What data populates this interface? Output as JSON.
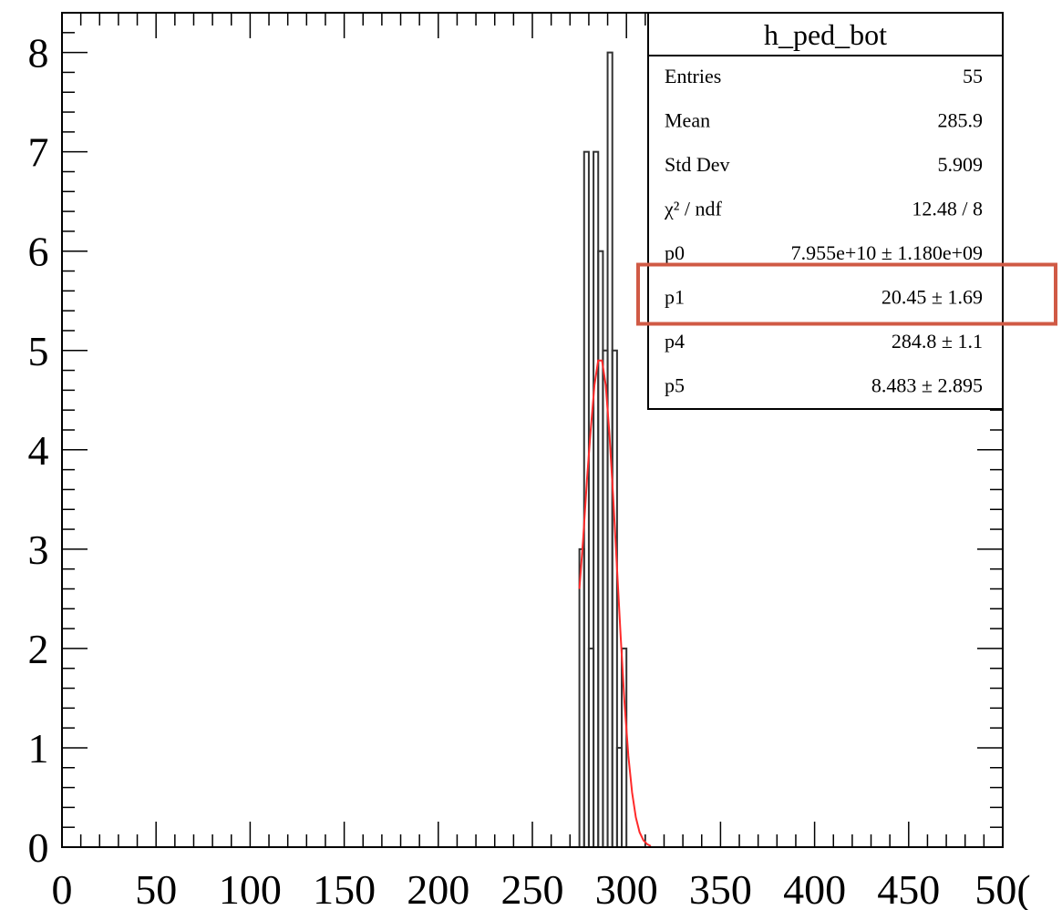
{
  "chart_data": {
    "type": "bar",
    "title": "",
    "xlabel": "",
    "ylabel": "",
    "xlim": [
      0,
      500
    ],
    "ylim": [
      0,
      8.4
    ],
    "x_ticks": [
      "0",
      "50",
      "100",
      "150",
      "200",
      "250",
      "300",
      "350",
      "400",
      "450",
      "50("
    ],
    "y_ticks": [
      "0",
      "1",
      "2",
      "3",
      "4",
      "5",
      "6",
      "7",
      "8"
    ],
    "histogram": {
      "bin_edges": [
        275,
        277.5,
        280,
        282.5,
        285,
        287.5,
        290,
        292.5,
        295,
        297.5,
        300
      ],
      "counts": [
        3,
        7,
        2,
        7,
        6,
        5,
        8,
        5,
        1,
        2
      ]
    },
    "fit_curve": {
      "color": "#ff2a2a",
      "x": [
        275,
        277,
        279,
        281,
        283,
        285,
        287,
        289,
        291,
        293,
        295,
        297,
        299,
        301,
        303,
        305,
        307,
        309,
        311,
        313
      ],
      "y": [
        2.6,
        3.1,
        3.7,
        4.2,
        4.65,
        4.9,
        4.9,
        4.65,
        4.15,
        3.5,
        2.8,
        2.1,
        1.45,
        0.92,
        0.55,
        0.3,
        0.15,
        0.07,
        0.03,
        0.01
      ]
    },
    "stats_box": {
      "title": "h_ped_bot",
      "rows": [
        {
          "label": "Entries",
          "value": "55"
        },
        {
          "label": "Mean",
          "value": "285.9"
        },
        {
          "label": "Std Dev",
          "value": "5.909"
        },
        {
          "label": "χ² / ndf",
          "value": "12.48 / 8"
        },
        {
          "label": "p0",
          "value": "7.955e+10 ± 1.180e+09"
        },
        {
          "label": "p1",
          "value": "20.45 ± 1.69"
        },
        {
          "label": "p4",
          "value": "284.8 ± 1.1"
        },
        {
          "label": "p5",
          "value": "8.483 ± 2.895"
        }
      ],
      "highlighted_row": "p1",
      "highlight_color": "#d05a45"
    },
    "grid": false,
    "legend": "none"
  }
}
